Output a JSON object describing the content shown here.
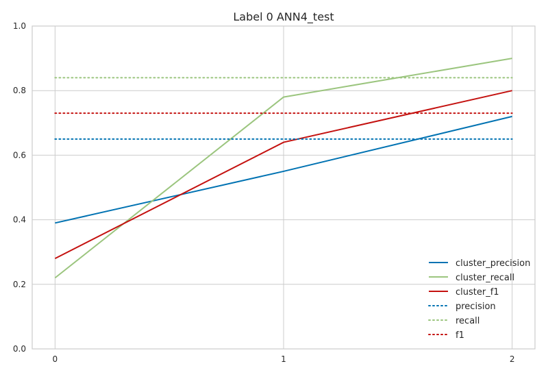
{
  "chart_data": {
    "type": "line",
    "title": "Label 0 ANN4_test",
    "xlabel": "",
    "ylabel": "",
    "x": [
      0,
      1,
      2
    ],
    "xticks": [
      "0",
      "1",
      "2"
    ],
    "yticks": [
      "0.0",
      "0.2",
      "0.4",
      "0.6",
      "0.8",
      "1.0"
    ],
    "xlim": [
      -0.1,
      2.1
    ],
    "ylim": [
      0.0,
      1.0
    ],
    "grid": true,
    "legend_position": "lower-right",
    "series": [
      {
        "name": "cluster_precision",
        "values": [
          0.39,
          0.55,
          0.72
        ],
        "color": "#0072b2",
        "style": "solid"
      },
      {
        "name": "cluster_recall",
        "values": [
          0.22,
          0.78,
          0.9
        ],
        "color": "#9bc57e",
        "style": "solid"
      },
      {
        "name": "cluster_f1",
        "values": [
          0.28,
          0.64,
          0.8
        ],
        "color": "#c4110f",
        "style": "solid"
      },
      {
        "name": "precision",
        "values": [
          0.65,
          0.65,
          0.65
        ],
        "color": "#0072b2",
        "style": "dotted"
      },
      {
        "name": "recall",
        "values": [
          0.84,
          0.84,
          0.84
        ],
        "color": "#9bc57e",
        "style": "dotted"
      },
      {
        "name": "f1",
        "values": [
          0.73,
          0.73,
          0.73
        ],
        "color": "#c4110f",
        "style": "dotted"
      }
    ]
  }
}
